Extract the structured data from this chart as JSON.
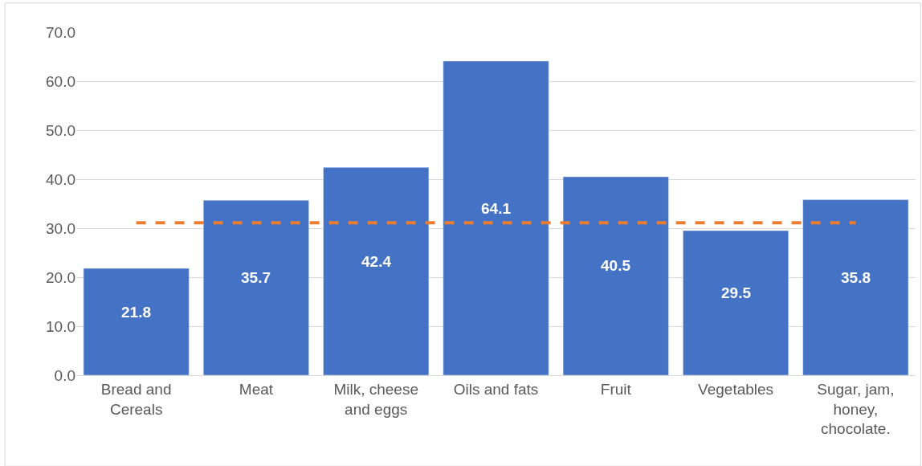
{
  "chart_data": {
    "type": "bar",
    "categories": [
      "Bread and Cereals",
      "Meat",
      "Milk, cheese and eggs",
      "Oils and fats",
      "Fruit",
      "Vegetables",
      "Sugar, jam, honey, chocolate."
    ],
    "series": [
      {
        "color": "#4472c4",
        "values": [
          21.8,
          35.7,
          42.4,
          64.1,
          40.5,
          29.5,
          35.8
        ],
        "data_labels": true
      },
      {
        "type": "line",
        "color": "#ed7d31",
        "line_style": "dashed",
        "values": [
          31.1,
          31.1,
          31.1,
          31.1,
          31.1,
          31.1,
          31.1
        ]
      }
    ],
    "ylim": [
      0,
      70
    ],
    "yticks": [
      {
        "value": 0,
        "label": "0.0"
      },
      {
        "value": 10,
        "label": "10.0"
      },
      {
        "value": 20,
        "label": "20.0"
      },
      {
        "value": 30,
        "label": "30.0"
      },
      {
        "value": 40,
        "label": "40.0"
      },
      {
        "value": 50,
        "label": "50.0"
      },
      {
        "value": 60,
        "label": "60.0"
      },
      {
        "value": 70,
        "label": "70.0"
      }
    ],
    "grid": "y"
  }
}
